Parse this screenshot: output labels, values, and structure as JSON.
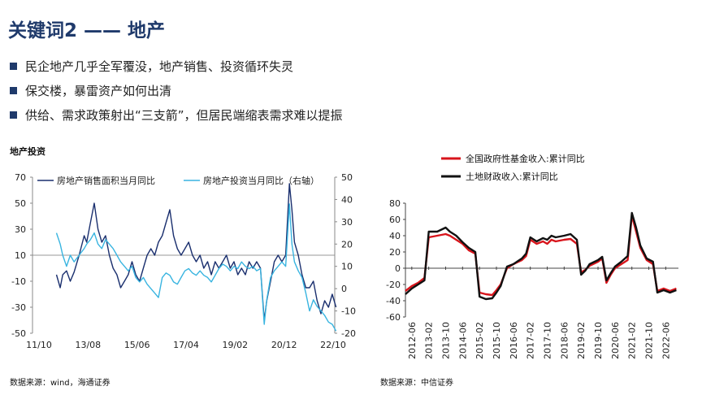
{
  "title": "关键词2 —— 地产",
  "bullets": [
    "民企地产几乎全军覆没，地产销售、投资循环失灵",
    "保交楼，暴雷资产如何出清",
    "供给、需求政策射出“三支箭”，但居民端缩表需求难以提振"
  ],
  "left_panel": {
    "label": "地产投资",
    "source": "数据来源：wind，海通证券"
  },
  "right_panel": {
    "source": "数据来源：中信证券"
  },
  "colors": {
    "title": "#1f3a6b",
    "navy": "#1a2f6e",
    "lightblue": "#38b4e0",
    "red": "#d8141b",
    "black": "#111111"
  },
  "chart_data": [
    {
      "type": "line",
      "xticks": [
        "11/10",
        "13/08",
        "15/06",
        "17/04",
        "19/02",
        "20/12",
        "22/10"
      ],
      "ylim": [
        -50,
        70
      ],
      "yticks": [
        70,
        50,
        30,
        10,
        -10,
        -30,
        -50
      ],
      "ylim_right": [
        -20,
        50
      ],
      "yticks_right": [
        50,
        40,
        30,
        20,
        10,
        0,
        -10,
        -20
      ],
      "series": [
        {
          "name": "房地产销售面积当月同比",
          "axis": "left",
          "color": "#1a2f6e",
          "points": [
            [
              2011.8,
              -5
            ],
            [
              2011.95,
              -15
            ],
            [
              2012.05,
              -5
            ],
            [
              2012.2,
              -2
            ],
            [
              2012.35,
              -10
            ],
            [
              2012.5,
              -3
            ],
            [
              2012.7,
              10
            ],
            [
              2012.9,
              25
            ],
            [
              2013.0,
              20
            ],
            [
              2013.15,
              35
            ],
            [
              2013.3,
              50
            ],
            [
              2013.45,
              30
            ],
            [
              2013.6,
              20
            ],
            [
              2013.75,
              25
            ],
            [
              2013.9,
              10
            ],
            [
              2014.05,
              0
            ],
            [
              2014.2,
              -5
            ],
            [
              2014.35,
              -15
            ],
            [
              2014.5,
              -10
            ],
            [
              2014.65,
              -5
            ],
            [
              2014.8,
              5
            ],
            [
              2014.95,
              -5
            ],
            [
              2015.1,
              -10
            ],
            [
              2015.25,
              0
            ],
            [
              2015.4,
              10
            ],
            [
              2015.55,
              15
            ],
            [
              2015.7,
              10
            ],
            [
              2015.85,
              20
            ],
            [
              2016.0,
              25
            ],
            [
              2016.15,
              35
            ],
            [
              2016.3,
              45
            ],
            [
              2016.45,
              25
            ],
            [
              2016.6,
              15
            ],
            [
              2016.75,
              10
            ],
            [
              2016.9,
              15
            ],
            [
              2017.05,
              20
            ],
            [
              2017.2,
              10
            ],
            [
              2017.35,
              5
            ],
            [
              2017.5,
              10
            ],
            [
              2017.65,
              0
            ],
            [
              2017.8,
              5
            ],
            [
              2017.95,
              -5
            ],
            [
              2018.1,
              5
            ],
            [
              2018.25,
              0
            ],
            [
              2018.4,
              5
            ],
            [
              2018.55,
              10
            ],
            [
              2018.7,
              0
            ],
            [
              2018.85,
              5
            ],
            [
              2019.0,
              -5
            ],
            [
              2019.15,
              0
            ],
            [
              2019.3,
              -5
            ],
            [
              2019.45,
              5
            ],
            [
              2019.6,
              0
            ],
            [
              2019.75,
              5
            ],
            [
              2019.9,
              0
            ],
            [
              2020.05,
              -40
            ],
            [
              2020.15,
              -25
            ],
            [
              2020.3,
              -10
            ],
            [
              2020.45,
              5
            ],
            [
              2020.6,
              10
            ],
            [
              2020.75,
              5
            ],
            [
              2020.9,
              10
            ],
            [
              2021.05,
              65
            ],
            [
              2021.15,
              45
            ],
            [
              2021.25,
              20
            ],
            [
              2021.4,
              10
            ],
            [
              2021.55,
              -5
            ],
            [
              2021.7,
              -15
            ],
            [
              2021.85,
              -15
            ],
            [
              2022.0,
              -10
            ],
            [
              2022.15,
              -25
            ],
            [
              2022.3,
              -35
            ],
            [
              2022.45,
              -25
            ],
            [
              2022.6,
              -30
            ],
            [
              2022.75,
              -20
            ],
            [
              2022.9,
              -30
            ]
          ]
        },
        {
          "name": "房地产投资当月同比（右轴）",
          "axis": "right",
          "color": "#38b4e0",
          "points": [
            [
              2011.8,
              25
            ],
            [
              2011.95,
              20
            ],
            [
              2012.05,
              15
            ],
            [
              2012.2,
              10
            ],
            [
              2012.35,
              15
            ],
            [
              2012.5,
              12
            ],
            [
              2012.7,
              15
            ],
            [
              2012.9,
              18
            ],
            [
              2013.0,
              20
            ],
            [
              2013.15,
              22
            ],
            [
              2013.3,
              25
            ],
            [
              2013.45,
              20
            ],
            [
              2013.6,
              18
            ],
            [
              2013.75,
              22
            ],
            [
              2013.9,
              20
            ],
            [
              2014.05,
              18
            ],
            [
              2014.2,
              15
            ],
            [
              2014.35,
              12
            ],
            [
              2014.5,
              10
            ],
            [
              2014.65,
              8
            ],
            [
              2014.8,
              10
            ],
            [
              2014.95,
              5
            ],
            [
              2015.1,
              3
            ],
            [
              2015.25,
              5
            ],
            [
              2015.4,
              2
            ],
            [
              2015.55,
              0
            ],
            [
              2015.7,
              -2
            ],
            [
              2015.85,
              -4
            ],
            [
              2016.0,
              5
            ],
            [
              2016.15,
              7
            ],
            [
              2016.3,
              6
            ],
            [
              2016.45,
              3
            ],
            [
              2016.6,
              2
            ],
            [
              2016.75,
              5
            ],
            [
              2016.9,
              8
            ],
            [
              2017.05,
              9
            ],
            [
              2017.2,
              7
            ],
            [
              2017.35,
              6
            ],
            [
              2017.5,
              8
            ],
            [
              2017.65,
              6
            ],
            [
              2017.8,
              5
            ],
            [
              2017.95,
              3
            ],
            [
              2018.1,
              6
            ],
            [
              2018.25,
              9
            ],
            [
              2018.4,
              11
            ],
            [
              2018.55,
              10
            ],
            [
              2018.7,
              8
            ],
            [
              2018.85,
              10
            ],
            [
              2019.0,
              9
            ],
            [
              2019.15,
              12
            ],
            [
              2019.3,
              10
            ],
            [
              2019.45,
              9
            ],
            [
              2019.6,
              10
            ],
            [
              2019.75,
              8
            ],
            [
              2019.9,
              9
            ],
            [
              2020.05,
              -16
            ],
            [
              2020.15,
              -5
            ],
            [
              2020.3,
              5
            ],
            [
              2020.45,
              8
            ],
            [
              2020.6,
              10
            ],
            [
              2020.75,
              12
            ],
            [
              2020.9,
              10
            ],
            [
              2021.05,
              38
            ],
            [
              2021.15,
              20
            ],
            [
              2021.25,
              12
            ],
            [
              2021.4,
              8
            ],
            [
              2021.55,
              5
            ],
            [
              2021.7,
              -2
            ],
            [
              2021.85,
              -10
            ],
            [
              2022.0,
              -5
            ],
            [
              2022.15,
              -8
            ],
            [
              2022.3,
              -10
            ],
            [
              2022.45,
              -12
            ],
            [
              2022.6,
              -15
            ],
            [
              2022.75,
              -16
            ],
            [
              2022.9,
              -19
            ]
          ]
        }
      ]
    },
    {
      "type": "line",
      "xticks": [
        "2012-06",
        "2013-02",
        "2013-10",
        "2014-06",
        "2015-02",
        "2015-10",
        "2016-06",
        "2017-02",
        "2017-10",
        "2018-06",
        "2019-02",
        "2019-10",
        "2020-06",
        "2021-02",
        "2021-10",
        "2022-06"
      ],
      "ylim": [
        -60,
        80
      ],
      "yticks": [
        80,
        60,
        40,
        20,
        0,
        -20,
        -40,
        -60
      ],
      "series": [
        {
          "name": "全国政府性基金收入:累计同比",
          "color": "#d8141b",
          "points": [
            [
              "2012-03",
              -28
            ],
            [
              "2012-06",
              -22
            ],
            [
              "2012-09",
              -18
            ],
            [
              "2012-12",
              -12
            ],
            [
              "2013-02",
              38
            ],
            [
              "2013-06",
              40
            ],
            [
              "2013-10",
              42
            ],
            [
              "2013-12",
              40
            ],
            [
              "2014-03",
              35
            ],
            [
              "2014-06",
              30
            ],
            [
              "2014-09",
              22
            ],
            [
              "2014-12",
              18
            ],
            [
              "2015-02",
              -30
            ],
            [
              "2015-05",
              -32
            ],
            [
              "2015-08",
              -33
            ],
            [
              "2015-10",
              -27
            ],
            [
              "2015-12",
              -20
            ],
            [
              "2016-03",
              0
            ],
            [
              "2016-06",
              5
            ],
            [
              "2016-10",
              10
            ],
            [
              "2016-12",
              15
            ],
            [
              "2017-02",
              35
            ],
            [
              "2017-05",
              30
            ],
            [
              "2017-08",
              33
            ],
            [
              "2017-10",
              30
            ],
            [
              "2017-12",
              35
            ],
            [
              "2018-02",
              33
            ],
            [
              "2018-06",
              35
            ],
            [
              "2018-09",
              36
            ],
            [
              "2018-12",
              30
            ],
            [
              "2019-02",
              -5
            ],
            [
              "2019-04",
              -2
            ],
            [
              "2019-06",
              3
            ],
            [
              "2019-10",
              8
            ],
            [
              "2019-12",
              12
            ],
            [
              "2020-02",
              -18
            ],
            [
              "2020-04",
              -8
            ],
            [
              "2020-06",
              0
            ],
            [
              "2020-09",
              5
            ],
            [
              "2020-12",
              10
            ],
            [
              "2021-02",
              65
            ],
            [
              "2021-04",
              45
            ],
            [
              "2021-06",
              25
            ],
            [
              "2021-09",
              10
            ],
            [
              "2021-12",
              5
            ],
            [
              "2022-02",
              -28
            ],
            [
              "2022-05",
              -25
            ],
            [
              "2022-08",
              -28
            ],
            [
              "2022-11",
              -25
            ]
          ]
        },
        {
          "name": "土地财政收入:累计同比",
          "color": "#111111",
          "points": [
            [
              "2012-03",
              -32
            ],
            [
              "2012-06",
              -25
            ],
            [
              "2012-09",
              -20
            ],
            [
              "2012-12",
              -15
            ],
            [
              "2013-02",
              45
            ],
            [
              "2013-06",
              45
            ],
            [
              "2013-10",
              50
            ],
            [
              "2013-12",
              45
            ],
            [
              "2014-03",
              40
            ],
            [
              "2014-06",
              32
            ],
            [
              "2014-09",
              25
            ],
            [
              "2014-12",
              20
            ],
            [
              "2015-02",
              -35
            ],
            [
              "2015-05",
              -38
            ],
            [
              "2015-08",
              -37
            ],
            [
              "2015-10",
              -30
            ],
            [
              "2015-12",
              -22
            ],
            [
              "2016-03",
              2
            ],
            [
              "2016-06",
              5
            ],
            [
              "2016-10",
              12
            ],
            [
              "2016-12",
              18
            ],
            [
              "2017-02",
              38
            ],
            [
              "2017-05",
              33
            ],
            [
              "2017-08",
              37
            ],
            [
              "2017-10",
              35
            ],
            [
              "2017-12",
              40
            ],
            [
              "2018-02",
              38
            ],
            [
              "2018-06",
              40
            ],
            [
              "2018-09",
              42
            ],
            [
              "2018-12",
              35
            ],
            [
              "2019-02",
              -8
            ],
            [
              "2019-04",
              -3
            ],
            [
              "2019-06",
              5
            ],
            [
              "2019-10",
              10
            ],
            [
              "2019-12",
              14
            ],
            [
              "2020-02",
              -15
            ],
            [
              "2020-04",
              -6
            ],
            [
              "2020-06",
              2
            ],
            [
              "2020-09",
              8
            ],
            [
              "2020-12",
              15
            ],
            [
              "2021-02",
              68
            ],
            [
              "2021-04",
              50
            ],
            [
              "2021-06",
              28
            ],
            [
              "2021-09",
              12
            ],
            [
              "2021-12",
              8
            ],
            [
              "2022-02",
              -30
            ],
            [
              "2022-05",
              -27
            ],
            [
              "2022-08",
              -30
            ],
            [
              "2022-11",
              -27
            ]
          ]
        }
      ]
    }
  ]
}
